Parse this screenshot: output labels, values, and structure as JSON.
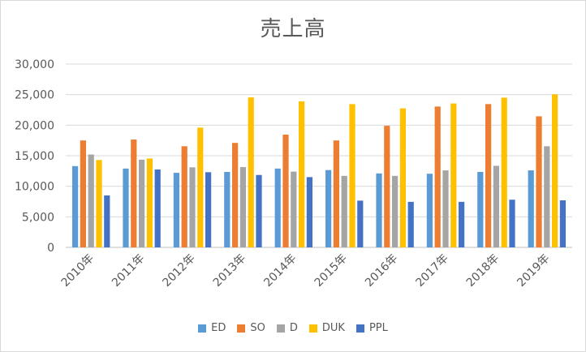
{
  "chart_data": {
    "type": "bar",
    "title": "売上高",
    "categories": [
      "2010年",
      "2011年",
      "2012年",
      "2013年",
      "2014年",
      "2015年",
      "2016年",
      "2017年",
      "2018年",
      "2019年"
    ],
    "ylim": [
      0,
      30000
    ],
    "yticks": [
      0,
      5000,
      10000,
      15000,
      20000,
      25000,
      30000
    ],
    "ytick_labels": [
      "0",
      "5,000",
      "10,000",
      "15,000",
      "20,000",
      "25,000",
      "30,000"
    ],
    "grid": true,
    "legend_position": "bottom",
    "xlabel": "",
    "ylabel": "",
    "series": [
      {
        "name": "ED",
        "color": "#5B9BD5",
        "values": [
          13300,
          12900,
          12200,
          12350,
          12900,
          12650,
          12100,
          12050,
          12350,
          12600
        ]
      },
      {
        "name": "SO",
        "color": "#ED7D31",
        "values": [
          17500,
          17650,
          16550,
          17100,
          18450,
          17500,
          19900,
          23050,
          23450,
          21450
        ]
      },
      {
        "name": "D",
        "color": "#A5A5A5",
        "values": [
          15200,
          14350,
          13100,
          13150,
          12400,
          11700,
          11700,
          12600,
          13350,
          16550
        ]
      },
      {
        "name": "DUK",
        "color": "#FFC000",
        "values": [
          14300,
          14550,
          19600,
          24550,
          23900,
          23450,
          22750,
          23550,
          24500,
          25050
        ]
      },
      {
        "name": "PPL",
        "color": "#4472C4",
        "values": [
          8500,
          12750,
          12300,
          11850,
          11500,
          7650,
          7450,
          7450,
          7800,
          7700
        ]
      }
    ]
  }
}
